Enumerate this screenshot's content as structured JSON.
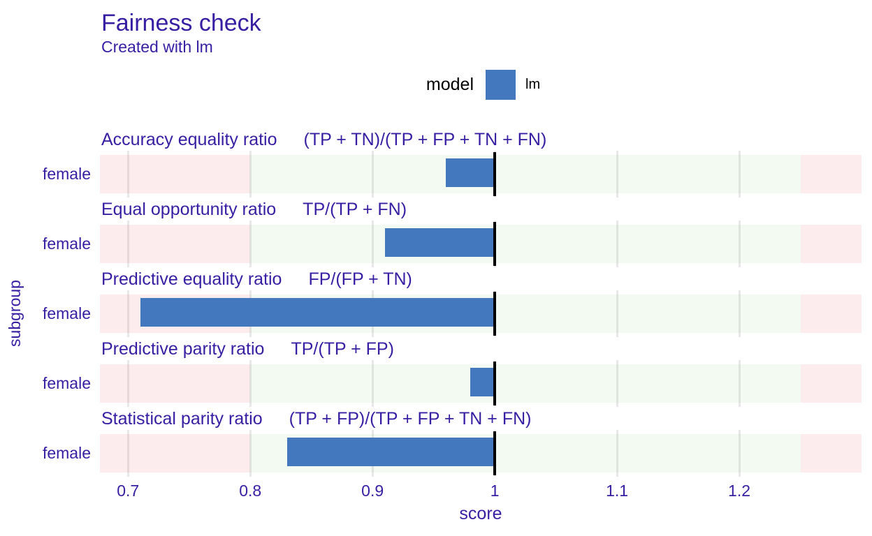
{
  "header": {
    "title": "Fairness check",
    "subtitle": "Created with lm"
  },
  "legend": {
    "label": "model",
    "item": "lm",
    "swatch_color": "#4378bf"
  },
  "axes": {
    "x_label": "score",
    "y_label": "subgroup"
  },
  "chart_data": {
    "type": "bar",
    "orientation": "horizontal",
    "title": "Fairness check",
    "subtitle": "Created with lm",
    "xlabel": "score",
    "ylabel": "subgroup",
    "xlim": [
      0.677,
      1.3
    ],
    "x_ticks": [
      0.7,
      0.8,
      0.9,
      1,
      1.1,
      1.2
    ],
    "x_tick_labels": [
      "0.7",
      "0.8",
      "0.9",
      "1",
      "1.1",
      "1.2"
    ],
    "baseline_value": 1.0,
    "fair_zone": [
      0.8,
      1.25
    ],
    "legend": {
      "title": "model",
      "entries": [
        "lm"
      ]
    },
    "panels": [
      {
        "metric": "Accuracy equality ratio",
        "formula": "(TP + TN)/(TP + FP + TN + FN)",
        "subgroup": "female",
        "value": 0.96
      },
      {
        "metric": "Equal opportunity ratio",
        "formula": "TP/(TP + FN)",
        "subgroup": "female",
        "value": 0.91
      },
      {
        "metric": "Predictive equality ratio",
        "formula": "FP/(FP + TN)",
        "subgroup": "female",
        "value": 0.71
      },
      {
        "metric": "Predictive parity ratio",
        "formula": "TP/(TP + FP)",
        "subgroup": "female",
        "value": 0.98
      },
      {
        "metric": "Statistical parity ratio",
        "formula": "(TP + FP)/(TP + FP + TN + FN)",
        "subgroup": "female",
        "value": 0.83
      }
    ],
    "colors": {
      "bar": "#4378bf",
      "fair_zone_fill": "#f3faf2",
      "unfair_zone_fill": "#fdecee",
      "gridline": "rgba(110,110,110,0.16)",
      "baseline_line": "#000000",
      "text": "#371ea3",
      "legend_text": "#000000"
    }
  }
}
